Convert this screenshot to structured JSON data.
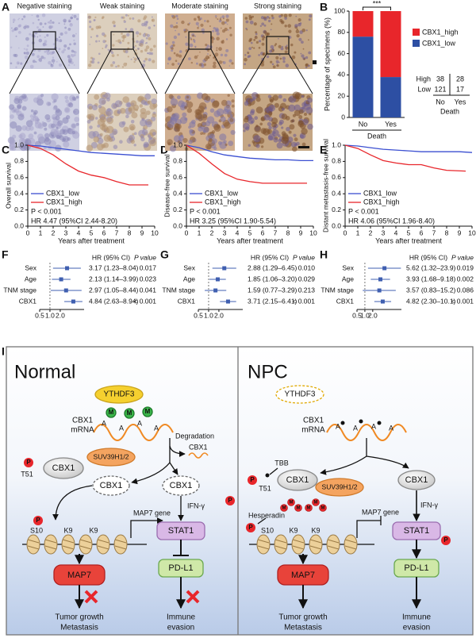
{
  "panel_labels": [
    "A",
    "B",
    "C",
    "D",
    "E",
    "F",
    "G",
    "H",
    "I"
  ],
  "staining_images": {
    "titles": [
      "Negative staining",
      "Weak staining",
      "Moderate staining",
      "Strong staining"
    ]
  },
  "chart_data": [
    {
      "type": "bar",
      "stacked": true,
      "ylabel": "Percentage of specimens (%)",
      "xlabel": "Death",
      "categories": [
        "No",
        "Yes"
      ],
      "series": [
        {
          "name": "CBX1_high",
          "color": "#e8262b",
          "values": [
            24,
            62
          ]
        },
        {
          "name": "CBX1_low",
          "color": "#2d4fa3",
          "values": [
            76,
            38
          ]
        }
      ],
      "ylim": [
        0,
        100
      ],
      "yticks": [
        0,
        20,
        40,
        60,
        80,
        100
      ],
      "significance": "***",
      "counts": {
        "rows": [
          "High",
          "Low"
        ],
        "values": [
          [
            38,
            28
          ],
          [
            121,
            17
          ]
        ],
        "columns": [
          "No",
          "Yes"
        ],
        "column_title": "Death"
      }
    },
    {
      "type": "line",
      "ylabel": "Overall survival",
      "xlabel": "Years after treatment",
      "series": [
        {
          "name": "CBX1_low",
          "color": "#3b4fd1",
          "x": [
            0,
            1,
            2,
            3,
            4,
            5,
            6,
            7,
            8,
            9,
            10
          ],
          "values": [
            1,
            0.99,
            0.97,
            0.95,
            0.93,
            0.91,
            0.9,
            0.89,
            0.88,
            0.87,
            0.87
          ]
        },
        {
          "name": "CBX1_high",
          "color": "#e8262b",
          "x": [
            0,
            1,
            2,
            3,
            4,
            5,
            6,
            7,
            8,
            9.5
          ],
          "values": [
            1,
            0.96,
            0.88,
            0.77,
            0.68,
            0.63,
            0.6,
            0.55,
            0.51,
            0.51
          ]
        }
      ],
      "xlim": [
        0,
        10
      ],
      "xticks": [
        0,
        1,
        2,
        3,
        4,
        5,
        6,
        7,
        8,
        9,
        10
      ],
      "ylim": [
        0,
        1
      ],
      "yticks": [
        {
          "value": 0,
          "label": "0.0"
        },
        0.2,
        0.4,
        0.6,
        0.8,
        {
          "value": 1,
          "label": "1.0"
        }
      ],
      "legend": "lower left",
      "annotations": [
        "P < 0.001",
        "HR 4.47 (95%CI 2.44-8.20)"
      ]
    },
    {
      "type": "line",
      "ylabel": "Disease-free survival",
      "xlabel": "Years after treatment",
      "series": [
        {
          "name": "CBX1_low",
          "color": "#3b4fd1",
          "x": [
            0,
            1,
            2,
            3,
            4,
            5,
            6,
            7,
            8,
            9,
            10
          ],
          "values": [
            1,
            0.97,
            0.92,
            0.88,
            0.86,
            0.84,
            0.83,
            0.82,
            0.82,
            0.81,
            0.81
          ]
        },
        {
          "name": "CBX1_high",
          "color": "#e8262b",
          "x": [
            0,
            1,
            2,
            3,
            4,
            5,
            6,
            7,
            8,
            9.5
          ],
          "values": [
            1,
            0.9,
            0.77,
            0.65,
            0.58,
            0.55,
            0.53,
            0.53,
            0.53,
            0.53
          ]
        }
      ],
      "xlim": [
        0,
        10
      ],
      "xticks": [
        0,
        1,
        2,
        3,
        4,
        5,
        6,
        7,
        8,
        9,
        10
      ],
      "ylim": [
        0,
        1
      ],
      "yticks": [
        {
          "value": 0,
          "label": "0.0"
        },
        0.2,
        0.4,
        0.6,
        0.8,
        {
          "value": 1,
          "label": "1.0"
        }
      ],
      "legend": "lower left",
      "annotations": [
        "P < 0.001",
        "HR 3.25 (95%CI 1.90-5.54)"
      ]
    },
    {
      "type": "line",
      "ylabel": "Distant metastasis-free survival",
      "xlabel": "Years after treatment",
      "series": [
        {
          "name": "CBX1_low",
          "color": "#3b4fd1",
          "x": [
            0,
            1,
            2,
            3,
            4,
            5,
            6,
            7,
            8,
            9,
            10
          ],
          "values": [
            1,
            0.99,
            0.97,
            0.95,
            0.94,
            0.93,
            0.92,
            0.92,
            0.92,
            0.92,
            0.91
          ]
        },
        {
          "name": "CBX1_high",
          "color": "#e8262b",
          "x": [
            0,
            1,
            2,
            3,
            4,
            5,
            6,
            7,
            8,
            9.5
          ],
          "values": [
            1,
            0.96,
            0.88,
            0.81,
            0.78,
            0.76,
            0.76,
            0.72,
            0.69,
            0.68
          ]
        }
      ],
      "xlim": [
        0,
        10
      ],
      "xticks": [
        0,
        1,
        2,
        3,
        4,
        5,
        6,
        7,
        8,
        9,
        10
      ],
      "ylim": [
        0,
        1
      ],
      "yticks": [
        {
          "value": 0,
          "label": "0.0"
        },
        0.2,
        0.4,
        0.6,
        0.8,
        {
          "value": 1,
          "label": "1.0"
        }
      ],
      "legend": "lower left",
      "annotations": [
        "P < 0.001",
        "HR 4.06 (95%CI 1.96-8.40)"
      ]
    },
    {
      "type": "forest",
      "header": [
        "HR (95% CI)",
        "P value"
      ],
      "categories": [
        "Sex",
        "Age",
        "TNM stage",
        "CBX1"
      ],
      "values": [
        3.17,
        2.13,
        2.97,
        4.84
      ],
      "lower": [
        1.23,
        1.14,
        1.05,
        2.63
      ],
      "upper": [
        8.04,
        3.99,
        8.44,
        8.94
      ],
      "value_labels": [
        "3.17 (1.23–8.04)",
        "2.13 (1.14–3.99)",
        "2.97 (1.05–8.44)",
        "4.84 (2.63–8.94)"
      ],
      "p_values": [
        "0.017",
        "0.023",
        "0.041",
        "< 0.001"
      ],
      "xlim": [
        0.5,
        10
      ],
      "xticks": [
        0.5,
        {
          "value": 1,
          "label": "1.0"
        },
        {
          "value": 2,
          "label": "2.0"
        }
      ],
      "log_x": true,
      "color": "#3f5fb0",
      "reference_line": 1
    },
    {
      "type": "forest",
      "header": [
        "HR (95% CI)",
        "P value"
      ],
      "categories": [
        "Sex",
        "Age",
        "TNM stage",
        "CBX1"
      ],
      "values": [
        2.88,
        1.85,
        1.59,
        3.71
      ],
      "lower": [
        1.29,
        1.06,
        0.77,
        2.15
      ],
      "upper": [
        6.45,
        3.2,
        3.29,
        6.41
      ],
      "value_labels": [
        "2.88 (1.29–6.45)",
        "1.85 (1.06–3.20)",
        "1.59 (0.77–3.29)",
        "3.71 (2.15–6.41)"
      ],
      "p_values": [
        "0.010",
        "0.029",
        "0.213",
        "< 0.001"
      ],
      "xlim": [
        0.5,
        10
      ],
      "xticks": [
        0.5,
        {
          "value": 1,
          "label": "1.0"
        },
        {
          "value": 2,
          "label": "2.0"
        }
      ],
      "log_x": true,
      "color": "#3f5fb0",
      "reference_line": 1
    },
    {
      "type": "forest",
      "header": [
        "HR (95% CI)",
        "P value"
      ],
      "categories": [
        "Sex",
        "Age",
        "TNM stage",
        "CBX1"
      ],
      "values": [
        5.62,
        3.93,
        3.57,
        4.82
      ],
      "lower": [
        1.32,
        1.68,
        0.83,
        2.3
      ],
      "upper": [
        23.9,
        9.18,
        15.2,
        10.1
      ],
      "value_labels": [
        "5.62 (1.32–23.9)",
        "3.93 (1.68–9.18)",
        "3.57 (0.83–15.2)",
        "4.82 (2.30–10.1)"
      ],
      "p_values": [
        "0.019",
        "0.002",
        "0.086",
        "< 0.001"
      ],
      "xlim": [
        0.5,
        25
      ],
      "xticks": [
        0.5,
        {
          "value": 1,
          "label": "1.0"
        },
        {
          "value": 2,
          "label": "2.0"
        }
      ],
      "log_x": true,
      "color": "#3f5fb0",
      "reference_line": 1
    }
  ],
  "diagram": {
    "normal": {
      "title": "Normal",
      "reader": "YTHDF3",
      "mrna": [
        "CBX1",
        "mRNA"
      ],
      "modification": "A",
      "methyl": "M",
      "degradation": "Degradation",
      "cbx1": "CBX1",
      "phospho": "P",
      "t51": "T51",
      "suv": "SUV39H1/2",
      "s10": "S10",
      "k9": "K9",
      "gene": "MAP7 gene",
      "ifn": "IFN-γ",
      "stat1": "STAT1",
      "pdl1": "PD-L1",
      "map7": "MAP7",
      "outcome1": [
        "Tumor growth",
        "Metastasis"
      ],
      "outcome2": [
        "Immune",
        "evasion"
      ]
    },
    "npc": {
      "title": "NPC",
      "reader": "YTHDF3",
      "mrna": [
        "CBX1",
        "mRNA"
      ],
      "modification": "A",
      "methyl": "M",
      "inhibitor1": "TBB",
      "inhibitor2": "Hesperadin",
      "cbx1": "CBX1",
      "phospho": "P",
      "t51": "T51",
      "suv": "SUV39H1/2",
      "s10": "S10",
      "k9": "K9",
      "gene": "MAP7 gene",
      "ifn": "IFN-γ",
      "stat1": "STAT1",
      "pdl1": "PD-L1",
      "map7": "MAP7",
      "outcome1": [
        "Tumor growth",
        "Metastasis"
      ],
      "outcome2": [
        "Immune",
        "evasion"
      ]
    }
  }
}
